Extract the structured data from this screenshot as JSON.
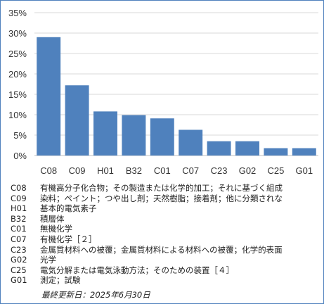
{
  "chart_data": {
    "type": "bar",
    "categories": [
      "C08",
      "C09",
      "H01",
      "B32",
      "C01",
      "C07",
      "C23",
      "G02",
      "C25",
      "G01"
    ],
    "values": [
      29.0,
      17.2,
      10.8,
      9.9,
      9.1,
      6.3,
      3.5,
      3.5,
      1.8,
      1.8
    ],
    "y_ticks": [
      "0%",
      "5%",
      "10%",
      "15%",
      "20%",
      "25%",
      "30%",
      "35%"
    ],
    "ylim": [
      0,
      35
    ],
    "grid": true,
    "bar_color": "#4f81bd",
    "grid_color": "#d9d9d9"
  },
  "legend": [
    {
      "code": "C08",
      "desc": "有機高分子化合物；その製造または化学的加工；それに基づく組成"
    },
    {
      "code": "C09",
      "desc": "染料；ペイント；つや出し剤；天然樹脂；接着剤；他に分類されな"
    },
    {
      "code": "H01",
      "desc": "基本的電気素子"
    },
    {
      "code": "B32",
      "desc": "積層体"
    },
    {
      "code": "C01",
      "desc": "無機化学"
    },
    {
      "code": "C07",
      "desc": "有機化学［２］"
    },
    {
      "code": "C23",
      "desc": "金属質材料への被覆；金属質材料による材料への被覆；化学的表面"
    },
    {
      "code": "G02",
      "desc": "光学"
    },
    {
      "code": "C25",
      "desc": "電気分解または電気泳動方法；そのための装置［４］"
    },
    {
      "code": "G01",
      "desc": "測定；試験"
    }
  ],
  "updated": "最終更新日：2025年6月30日"
}
